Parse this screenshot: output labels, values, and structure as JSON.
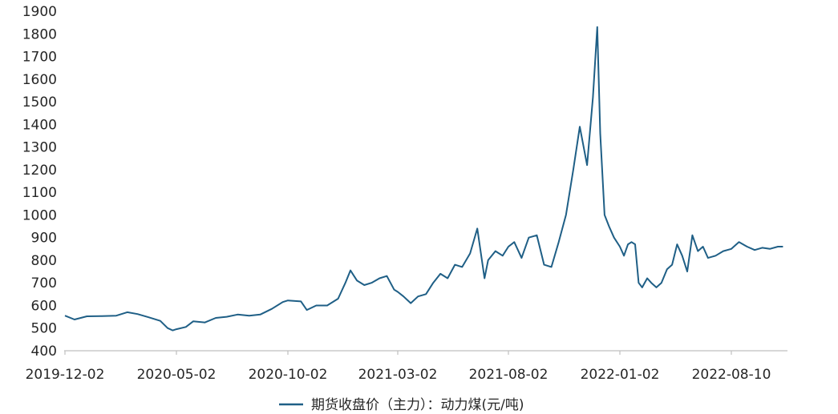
{
  "chart_data": {
    "type": "line",
    "title": "",
    "xlabel": "",
    "ylabel": "",
    "ylim": [
      400,
      1900
    ],
    "yticks": [
      400,
      500,
      600,
      700,
      800,
      900,
      1000,
      1100,
      1200,
      1300,
      1400,
      1500,
      1600,
      1700,
      1800,
      1900
    ],
    "xticks": [
      "2019-12-02",
      "2020-05-02",
      "2020-10-02",
      "2021-03-02",
      "2021-08-02",
      "2022-01-02",
      "2022-08-10"
    ],
    "grid": false,
    "legend_position": "bottom-center",
    "colors": {
      "line": "#1f5f86",
      "axis": "#bfbfbf",
      "text": "#262626"
    },
    "series": [
      {
        "name": "期货收盘价（主力）：动力煤(元/吨)",
        "points": [
          [
            "2019-12-02",
            555
          ],
          [
            "2019-12-15",
            538
          ],
          [
            "2020-01-01",
            552
          ],
          [
            "2020-01-20",
            553
          ],
          [
            "2020-02-10",
            555
          ],
          [
            "2020-02-25",
            570
          ],
          [
            "2020-03-10",
            562
          ],
          [
            "2020-03-25",
            548
          ],
          [
            "2020-04-10",
            532
          ],
          [
            "2020-04-20",
            500
          ],
          [
            "2020-04-27",
            490
          ],
          [
            "2020-05-02",
            495
          ],
          [
            "2020-05-15",
            505
          ],
          [
            "2020-05-25",
            530
          ],
          [
            "2020-06-10",
            525
          ],
          [
            "2020-06-25",
            545
          ],
          [
            "2020-07-10",
            550
          ],
          [
            "2020-07-25",
            560
          ],
          [
            "2020-08-10",
            555
          ],
          [
            "2020-08-25",
            560
          ],
          [
            "2020-09-10",
            585
          ],
          [
            "2020-09-25",
            615
          ],
          [
            "2020-10-02",
            622
          ],
          [
            "2020-10-20",
            618
          ],
          [
            "2020-10-28",
            580
          ],
          [
            "2020-11-10",
            600
          ],
          [
            "2020-11-25",
            600
          ],
          [
            "2020-12-10",
            630
          ],
          [
            "2020-12-20",
            700
          ],
          [
            "2020-12-27",
            755
          ],
          [
            "2021-01-05",
            710
          ],
          [
            "2021-01-15",
            690
          ],
          [
            "2021-01-25",
            700
          ],
          [
            "2021-02-05",
            720
          ],
          [
            "2021-02-15",
            730
          ],
          [
            "2021-02-25",
            670
          ],
          [
            "2021-03-02",
            660
          ],
          [
            "2021-03-10",
            640
          ],
          [
            "2021-03-20",
            610
          ],
          [
            "2021-03-30",
            640
          ],
          [
            "2021-04-10",
            650
          ],
          [
            "2021-04-20",
            700
          ],
          [
            "2021-04-30",
            740
          ],
          [
            "2021-05-10",
            720
          ],
          [
            "2021-05-20",
            780
          ],
          [
            "2021-05-30",
            770
          ],
          [
            "2021-06-10",
            830
          ],
          [
            "2021-06-20",
            940
          ],
          [
            "2021-06-30",
            720
          ],
          [
            "2021-07-05",
            800
          ],
          [
            "2021-07-15",
            840
          ],
          [
            "2021-07-25",
            820
          ],
          [
            "2021-08-02",
            860
          ],
          [
            "2021-08-10",
            880
          ],
          [
            "2021-08-20",
            810
          ],
          [
            "2021-08-30",
            900
          ],
          [
            "2021-09-10",
            910
          ],
          [
            "2021-09-20",
            780
          ],
          [
            "2021-09-30",
            770
          ],
          [
            "2021-10-10",
            880
          ],
          [
            "2021-10-20",
            1000
          ],
          [
            "2021-10-30",
            1200
          ],
          [
            "2021-11-08",
            1390
          ],
          [
            "2021-11-18",
            1220
          ],
          [
            "2021-11-26",
            1520
          ],
          [
            "2021-12-02",
            1830
          ],
          [
            "2021-12-06",
            1360
          ],
          [
            "2021-12-12",
            1000
          ],
          [
            "2021-12-18",
            950
          ],
          [
            "2021-12-25",
            900
          ],
          [
            "2022-01-02",
            860
          ],
          [
            "2022-01-10",
            820
          ],
          [
            "2022-01-18",
            870
          ],
          [
            "2022-01-25",
            880
          ],
          [
            "2022-02-01",
            870
          ],
          [
            "2022-02-08",
            700
          ],
          [
            "2022-02-15",
            680
          ],
          [
            "2022-02-25",
            720
          ],
          [
            "2022-03-05",
            700
          ],
          [
            "2022-03-15",
            680
          ],
          [
            "2022-03-25",
            700
          ],
          [
            "2022-04-05",
            760
          ],
          [
            "2022-04-15",
            780
          ],
          [
            "2022-04-25",
            870
          ],
          [
            "2022-05-05",
            820
          ],
          [
            "2022-05-15",
            750
          ],
          [
            "2022-05-25",
            910
          ],
          [
            "2022-06-05",
            840
          ],
          [
            "2022-06-15",
            860
          ],
          [
            "2022-06-25",
            810
          ],
          [
            "2022-07-10",
            820
          ],
          [
            "2022-07-25",
            840
          ],
          [
            "2022-08-10",
            850
          ],
          [
            "2022-08-25",
            880
          ],
          [
            "2022-09-10",
            860
          ],
          [
            "2022-09-25",
            845
          ],
          [
            "2022-10-10",
            855
          ],
          [
            "2022-10-25",
            850
          ],
          [
            "2022-11-10",
            860
          ],
          [
            "2022-11-20",
            860
          ]
        ]
      }
    ]
  }
}
